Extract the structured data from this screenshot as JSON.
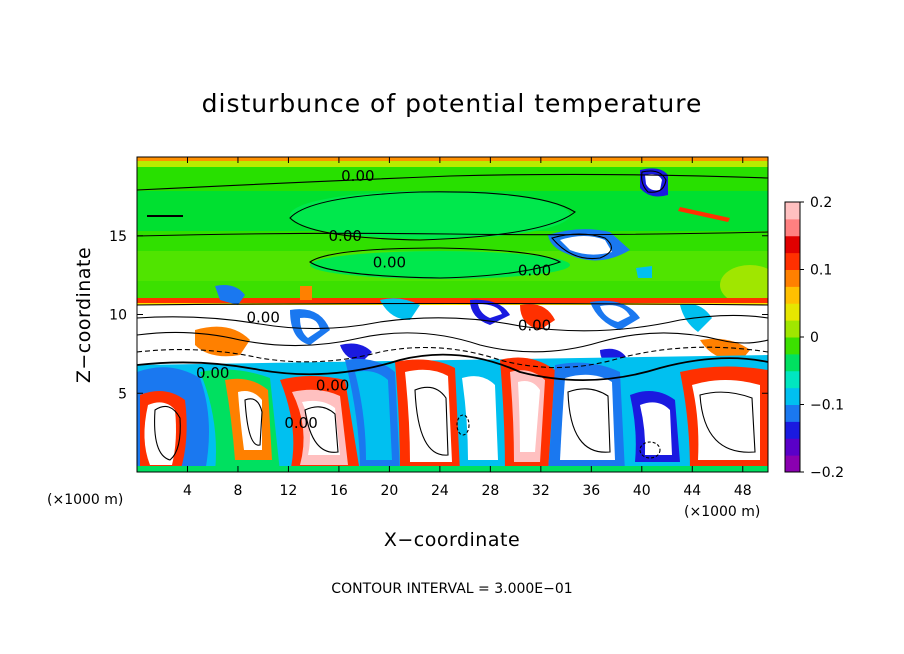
{
  "chart_data": {
    "type": "heatmap",
    "title": "disturbunce of potential temperature",
    "xlabel": "X−coordinate",
    "ylabel": "Z−coordinate",
    "x_unit": "(×1000 m)",
    "z_unit": "(×1000 m)",
    "xlim": [
      0,
      50
    ],
    "ylim": [
      0,
      20
    ],
    "x_ticks": [
      "4",
      "8",
      "12",
      "16",
      "20",
      "24",
      "28",
      "32",
      "36",
      "40",
      "44",
      "48"
    ],
    "x_tick_values": [
      4,
      8,
      12,
      16,
      20,
      24,
      28,
      32,
      36,
      40,
      44,
      48
    ],
    "y_ticks": [
      "5",
      "10",
      "15"
    ],
    "y_tick_values": [
      5,
      10,
      15
    ],
    "colorbar": {
      "range": [
        -0.2,
        0.2
      ],
      "tick_labels": [
        "0.2",
        "0.1",
        "0",
        "−0.1",
        "−0.2"
      ],
      "tick_values": [
        0.2,
        0.1,
        0,
        -0.1,
        -0.2
      ],
      "colors": [
        "#8a00b0",
        "#5a00c8",
        "#1a1ae0",
        "#1a78f0",
        "#00c0f0",
        "#00e6c0",
        "#00e060",
        "#3ce000",
        "#a0e600",
        "#e6e600",
        "#ffc000",
        "#ff8000",
        "#ff3000",
        "#e00000",
        "#ff8080",
        "#ffc0c0"
      ]
    },
    "contour_interval": "CONTOUR INTERVAL = 3.000E−01",
    "contour_labels": [
      {
        "text": "0.00",
        "x": 17.5,
        "z": 18.8
      },
      {
        "text": "0.00",
        "x": 16.5,
        "z": 15.0
      },
      {
        "text": "0.00",
        "x": 20.0,
        "z": 13.3
      },
      {
        "text": "0.00",
        "x": 31.5,
        "z": 12.8
      },
      {
        "text": "0.00",
        "x": 10.0,
        "z": 9.8
      },
      {
        "text": "0.00",
        "x": 31.5,
        "z": 9.3
      },
      {
        "text": "0.00",
        "x": 6.0,
        "z": 6.3
      },
      {
        "text": "0.00",
        "x": 15.5,
        "z": 5.5
      },
      {
        "text": "0.00",
        "x": 13.0,
        "z": 3.1
      }
    ]
  }
}
